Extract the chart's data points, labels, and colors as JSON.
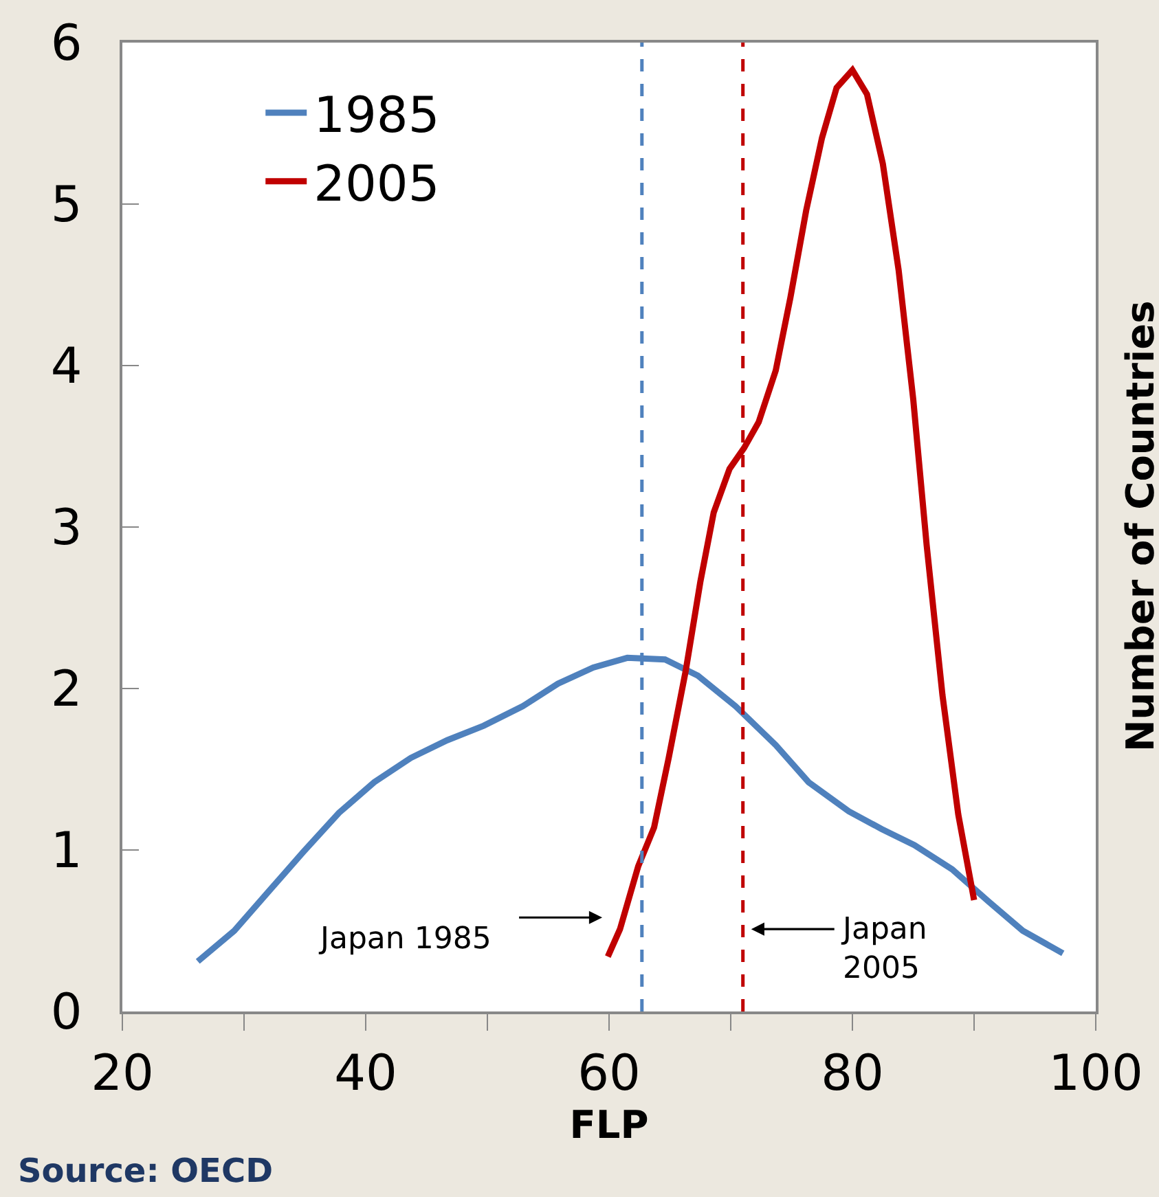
{
  "chart_data": {
    "type": "line",
    "xlabel": "FLP",
    "ylabel": "Number of Countries",
    "xlim": [
      20,
      100
    ],
    "xticks": [
      20,
      {
        "value": 30,
        "label": null
      },
      40,
      {
        "value": 50,
        "label": null
      },
      60,
      {
        "value": 70,
        "label": null
      },
      80,
      {
        "value": 90,
        "label": null
      },
      100
    ],
    "ylim": [
      0,
      6
    ],
    "yticks": [
      0,
      1,
      2,
      3,
      4,
      5,
      6
    ],
    "legend": "top left",
    "marker": "none",
    "line_style": "solid",
    "series": [
      {
        "name": "1985",
        "color": "#4f81bd",
        "x": [
          26.2,
          29.2,
          32.1,
          34.9,
          37.8,
          40.7,
          43.7,
          46.7,
          49.7,
          52.9,
          55.8,
          58.7,
          61.5,
          64.6,
          67.3,
          70.4,
          73.7,
          76.4,
          79.7,
          82.4,
          85.1,
          88.2,
          91.2,
          94.0,
          97.3
        ],
        "values": [
          0.31,
          0.5,
          0.75,
          0.99,
          1.23,
          1.42,
          1.57,
          1.68,
          1.77,
          1.89,
          2.03,
          2.13,
          2.19,
          2.18,
          2.08,
          1.89,
          1.65,
          1.42,
          1.24,
          1.13,
          1.03,
          0.88,
          0.68,
          0.5,
          0.36
        ]
      },
      {
        "name": "2005",
        "color": "#c00000",
        "x": [
          59.9,
          60.9,
          62.4,
          63.7,
          64.9,
          66.3,
          67.5,
          68.6,
          69.9,
          71.1,
          72.3,
          73.7,
          74.9,
          76.2,
          77.5,
          78.7,
          80.0,
          81.2,
          82.5,
          83.8,
          85.0,
          86.1,
          87.4,
          88.7,
          90.0
        ],
        "values": [
          0.34,
          0.51,
          0.9,
          1.14,
          1.57,
          2.11,
          2.66,
          3.09,
          3.36,
          3.49,
          3.65,
          3.97,
          4.42,
          4.96,
          5.41,
          5.72,
          5.83,
          5.68,
          5.25,
          4.59,
          3.79,
          2.89,
          1.96,
          1.22,
          0.69
        ]
      }
    ],
    "ref_lines": [
      {
        "axis": "x",
        "value": 62.7,
        "color": "#4f81bd",
        "line_style": "dashed"
      },
      {
        "axis": "x",
        "value": 71.0,
        "color": "#c00000",
        "line_style": "dashed"
      }
    ],
    "annotations": [
      "Japan 1985",
      "Japan\n2005",
      "Source: OECD"
    ]
  }
}
